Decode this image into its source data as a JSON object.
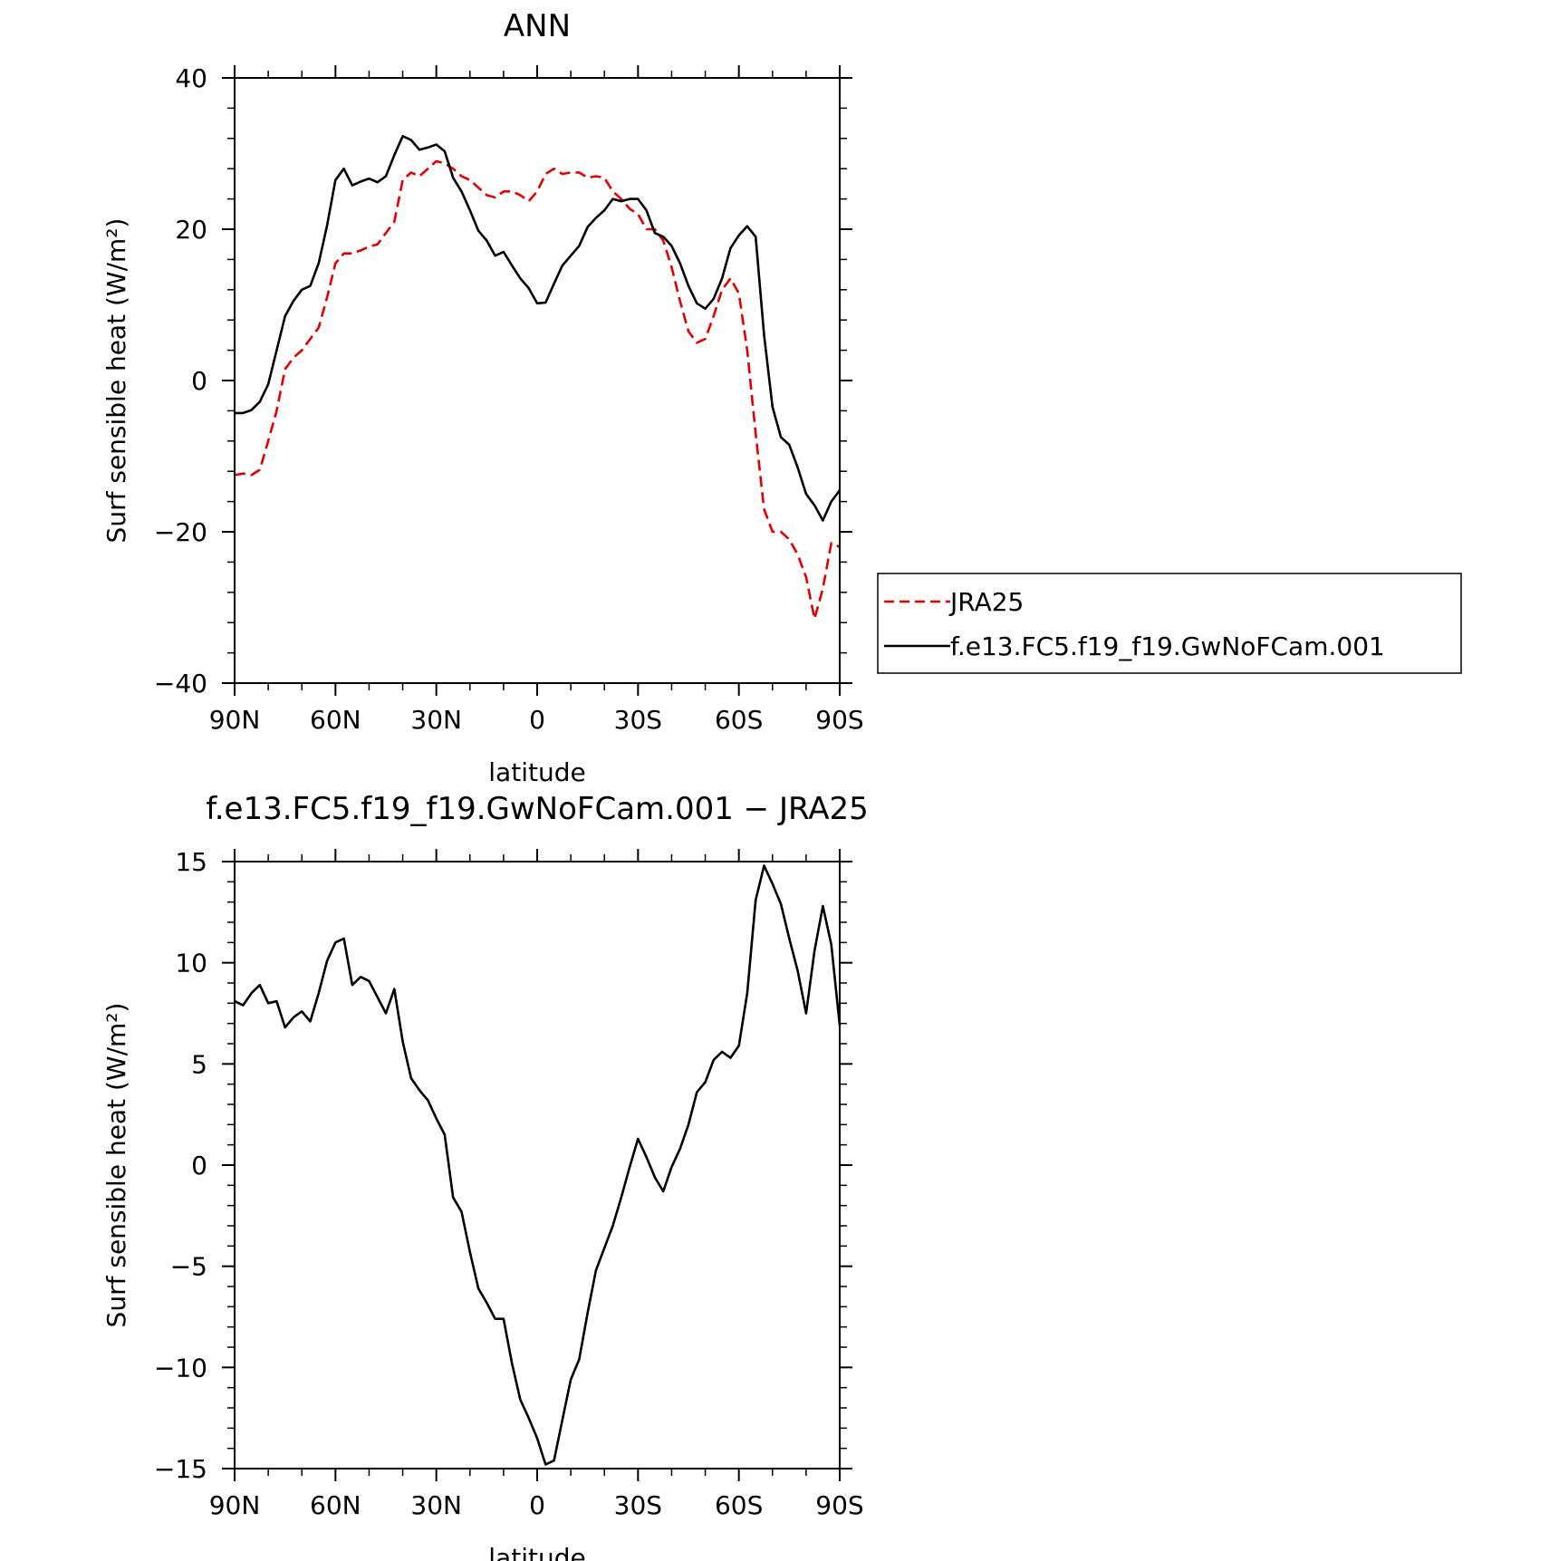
{
  "chart_data": [
    {
      "type": "line",
      "title": "ANN",
      "xlabel": "latitude",
      "ylabel": "Surf sensible heat (W/m²)",
      "xlim": [
        90,
        -90
      ],
      "ylim": [
        -40,
        40
      ],
      "xticks": [
        90,
        60,
        30,
        0,
        -30,
        -60,
        -90
      ],
      "xtick_labels": [
        "90N",
        "60N",
        "30N",
        "0",
        "30S",
        "60S",
        "90S"
      ],
      "yticks": [
        -40,
        -20,
        0,
        20,
        40
      ],
      "ytick_labels": [
        "−40",
        "−20",
        "0",
        "20",
        "40"
      ],
      "legend_position": "right",
      "series": [
        {
          "name": "JRA25",
          "color": "#e00000",
          "style": "dashed",
          "x": [
            90,
            87.5,
            85,
            82.5,
            80,
            77.5,
            75,
            72.5,
            70,
            67.5,
            65,
            62.5,
            60,
            57.5,
            55,
            52.5,
            50,
            47.5,
            45,
            42.5,
            40,
            37.5,
            35,
            32.5,
            30,
            27.5,
            25,
            22.5,
            20,
            17.5,
            15,
            12.5,
            10,
            7.5,
            5,
            2.5,
            0,
            -2.5,
            -5,
            -7.5,
            -10,
            -12.5,
            -15,
            -17.5,
            -20,
            -22.5,
            -25,
            -27.5,
            -30,
            -32.5,
            -35,
            -37.5,
            -40,
            -42.5,
            -45,
            -47.5,
            -50,
            -52.5,
            -55,
            -57.5,
            -60,
            -62.5,
            -65,
            -67.5,
            -70,
            -72.5,
            -75,
            -77.5,
            -80,
            -82.5,
            -85,
            -87.5,
            -90
          ],
          "y": [
            -12.5,
            -12.3,
            -12.5,
            -11.8,
            -8.0,
            -4.0,
            1.5,
            3.0,
            4.0,
            5.5,
            7.0,
            11.0,
            15.5,
            16.8,
            16.8,
            17.2,
            17.7,
            18.0,
            19.5,
            21.0,
            26.5,
            27.5,
            27.0,
            28.0,
            29.0,
            28.7,
            28.0,
            27.0,
            26.5,
            25.5,
            24.5,
            24.2,
            25.0,
            25.0,
            24.5,
            23.7,
            25.0,
            27.3,
            28.0,
            27.3,
            27.5,
            27.5,
            26.8,
            27.0,
            26.8,
            25.0,
            24.0,
            22.7,
            22.0,
            20.0,
            20.0,
            18.5,
            15.0,
            10.5,
            6.5,
            5.0,
            5.5,
            8.5,
            12.0,
            13.5,
            11.5,
            4.0,
            -7.0,
            -17.0,
            -20.0,
            -20.0,
            -21.0,
            -23.0,
            -26.0,
            -31.5,
            -27.5,
            -21.5,
            -22.0
          ]
        },
        {
          "name": "f.e13.FC5.f19_f19.GwNoFCam.001",
          "color": "#000000",
          "style": "solid",
          "x": [
            90,
            87.5,
            85,
            82.5,
            80,
            77.5,
            75,
            72.5,
            70,
            67.5,
            65,
            62.5,
            60,
            57.5,
            55,
            52.5,
            50,
            47.5,
            45,
            42.5,
            40,
            37.5,
            35,
            32.5,
            30,
            27.5,
            25,
            22.5,
            20,
            17.5,
            15,
            12.5,
            10,
            7.5,
            5,
            2.5,
            0,
            -2.5,
            -5,
            -7.5,
            -10,
            -12.5,
            -15,
            -17.5,
            -20,
            -22.5,
            -25,
            -27.5,
            -30,
            -32.5,
            -35,
            -37.5,
            -40,
            -42.5,
            -45,
            -47.5,
            -50,
            -52.5,
            -55,
            -57.5,
            -60,
            -62.5,
            -65,
            -67.5,
            -70,
            -72.5,
            -75,
            -77.5,
            -80,
            -82.5,
            -85,
            -87.5,
            -90
          ],
          "y": [
            -4.3,
            -4.3,
            -3.9,
            -2.8,
            -0.5,
            4.0,
            8.5,
            10.5,
            12.0,
            12.5,
            15.5,
            20.5,
            26.5,
            28.0,
            25.8,
            26.3,
            26.7,
            26.2,
            27.0,
            29.8,
            32.3,
            31.8,
            30.5,
            30.8,
            31.2,
            30.3,
            26.8,
            25.0,
            22.5,
            19.8,
            18.5,
            16.5,
            17.0,
            15.2,
            13.5,
            12.2,
            10.2,
            10.3,
            12.8,
            15.2,
            16.5,
            17.8,
            20.3,
            21.5,
            22.5,
            24.0,
            23.7,
            24.0,
            24.0,
            22.5,
            19.5,
            19.0,
            17.8,
            15.5,
            12.5,
            10.2,
            9.5,
            10.8,
            13.5,
            17.5,
            19.2,
            20.4,
            19.0,
            6.0,
            -3.5,
            -7.5,
            -8.5,
            -11.5,
            -15.0,
            -16.5,
            -18.5,
            -16.0,
            -14.5
          ]
        }
      ]
    },
    {
      "type": "line",
      "title": "f.e13.FC5.f19_f19.GwNoFCam.001 − JRA25",
      "xlabel": "latitude",
      "ylabel": "Surf sensible heat (W/m²)",
      "xlim": [
        90,
        -90
      ],
      "ylim": [
        -15,
        15
      ],
      "xticks": [
        90,
        60,
        30,
        0,
        -30,
        -60,
        -90
      ],
      "xtick_labels": [
        "90N",
        "60N",
        "30N",
        "0",
        "30S",
        "60S",
        "90S"
      ],
      "yticks": [
        -15,
        -10,
        -5,
        0,
        5,
        10,
        15
      ],
      "ytick_labels": [
        "−15",
        "−10",
        "−5",
        "0",
        "5",
        "10",
        "15"
      ],
      "series": [
        {
          "color": "#000000",
          "style": "solid",
          "x": [
            90,
            87.5,
            85,
            82.5,
            80,
            77.5,
            75,
            72.5,
            70,
            67.5,
            65,
            62.5,
            60,
            57.5,
            55,
            52.5,
            50,
            47.5,
            45,
            42.5,
            40,
            37.5,
            35,
            32.5,
            30,
            27.5,
            25,
            22.5,
            20,
            17.5,
            15,
            12.5,
            10,
            7.5,
            5,
            2.5,
            0,
            -2.5,
            -5,
            -7.5,
            -10,
            -12.5,
            -15,
            -17.5,
            -20,
            -22.5,
            -25,
            -27.5,
            -30,
            -32.5,
            -35,
            -37.5,
            -40,
            -42.5,
            -45,
            -47.5,
            -50,
            -52.5,
            -55,
            -57.5,
            -60,
            -62.5,
            -65,
            -67.5,
            -70,
            -72.5,
            -75,
            -77.5,
            -80,
            -82.5,
            -85,
            -87.5,
            -90
          ],
          "y": [
            8.1,
            7.9,
            8.5,
            8.9,
            8.0,
            8.1,
            6.8,
            7.3,
            7.6,
            7.1,
            8.5,
            10.1,
            11.0,
            11.2,
            8.9,
            9.3,
            9.1,
            8.3,
            7.5,
            8.7,
            6.1,
            4.3,
            3.7,
            3.2,
            2.3,
            1.5,
            -1.6,
            -2.3,
            -4.3,
            -6.1,
            -6.8,
            -7.6,
            -7.6,
            -9.8,
            -11.6,
            -12.5,
            -13.5,
            -14.8,
            -14.6,
            -12.6,
            -10.6,
            -9.6,
            -7.3,
            -5.2,
            -4.1,
            -3.0,
            -1.6,
            -0.1,
            1.3,
            0.4,
            -0.6,
            -1.3,
            -0.1,
            0.8,
            2.0,
            3.6,
            4.1,
            5.2,
            5.6,
            5.3,
            5.9,
            8.5,
            13.1,
            14.8,
            13.9,
            12.9,
            11.2,
            9.6,
            7.5,
            10.6,
            12.8,
            10.9,
            6.9
          ]
        }
      ]
    }
  ],
  "legend": {
    "entries": [
      "JRA25",
      "f.e13.FC5.f19_f19.GwNoFCam.001"
    ]
  }
}
